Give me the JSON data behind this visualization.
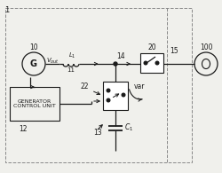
{
  "bg_color": "#f0f0ec",
  "line_color": "#1a1a1a",
  "text_color": "#1a1a1a",
  "fig_width": 2.5,
  "fig_height": 1.95,
  "dpi": 100,
  "label_1": "1",
  "label_10": "10",
  "label_11": "11",
  "label_12": "12",
  "label_13": "13",
  "label_14": "14",
  "label_15": "15",
  "label_20": "20",
  "label_22": "22",
  "label_100": "100",
  "label_vout": "$V_{out}$",
  "label_L1": "$L_1$",
  "label_var": "var",
  "label_C1": "$C_1$",
  "label_gen": "G",
  "label_gcu": "GENERATOR\nCONTROL UNIT"
}
